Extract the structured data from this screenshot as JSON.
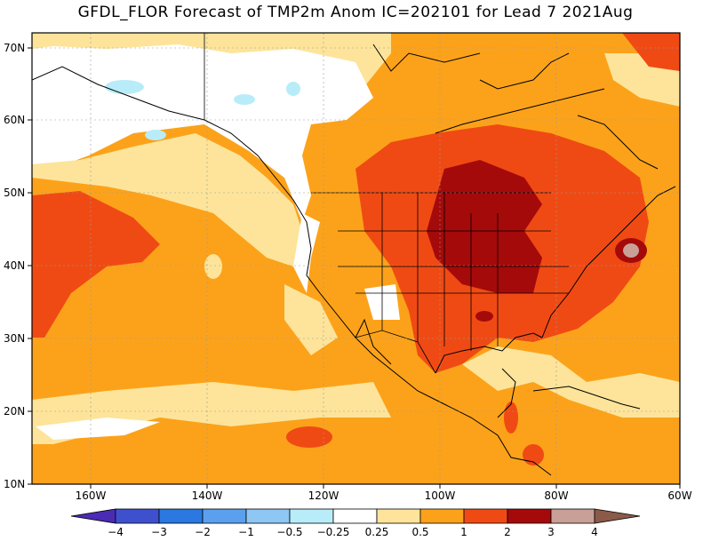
{
  "title": "GFDL_FLOR Forecast of TMP2m Anom IC=202101 for Lead 7 2021Aug",
  "lat_labels": [
    "70N",
    "60N",
    "50N",
    "40N",
    "30N",
    "20N",
    "10N"
  ],
  "lon_labels": [
    "160W",
    "140W",
    "120W",
    "100W",
    "80W",
    "60W"
  ],
  "colorbar": {
    "labels": [
      "−4",
      "−3",
      "−2",
      "−1",
      "−0.5",
      "−0.25",
      "0.25",
      "0.5",
      "1",
      "2",
      "3",
      "4"
    ],
    "colors": [
      "#4a2bb4",
      "#3f50cf",
      "#2a78e0",
      "#5aa0ef",
      "#8ec6f4",
      "#b8ecf8",
      "#ffffff",
      "#fde49a",
      "#fca21a",
      "#f04a14",
      "#a50a0a",
      "#c8a098",
      "#8b5a48"
    ]
  },
  "colors": {
    "anom_0_25_0_5": "#fde49a",
    "anom_0_5_1": "#fca21a",
    "anom_1_2": "#f04a14",
    "anom_2_3": "#a50a0a",
    "anom_3_4": "#c8a098",
    "anom_neg_0_5": "#b8ecf8",
    "neutral": "#ffffff"
  }
}
